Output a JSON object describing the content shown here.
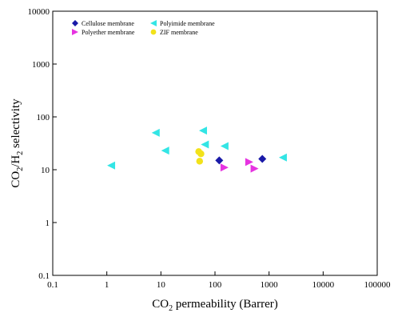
{
  "chart_data": {
    "type": "scatter",
    "title": "",
    "x_scale": "log",
    "y_scale": "log",
    "xlim": [
      0.1,
      100000
    ],
    "ylim": [
      0.1,
      10000
    ],
    "x_ticks": [
      0.1,
      1,
      10,
      100,
      1000,
      10000,
      100000
    ],
    "x_tick_labels": [
      "0.1",
      "1",
      "10",
      "100",
      "1000",
      "10000",
      "100000"
    ],
    "y_ticks": [
      0.1,
      1,
      10,
      100,
      1000,
      10000
    ],
    "y_tick_labels": [
      "0.1",
      "1",
      "10",
      "100",
      "1000",
      "10000"
    ],
    "xlabel": {
      "main": "CO",
      "sub": "2",
      "rest": " permeability (Barrer)"
    },
    "ylabel": {
      "a": "CO",
      "a_sub": "2",
      "b": "/H",
      "b_sub": "2",
      "c": " selectivity"
    },
    "grid": false,
    "legend_position": "top-left",
    "series": [
      {
        "name": "Cellulose membrane",
        "marker": "diamond",
        "color": "#1a1aa8",
        "points": [
          {
            "x": 120,
            "y": 15
          },
          {
            "x": 750,
            "y": 16
          }
        ]
      },
      {
        "name": "Polyimide membrane",
        "marker": "triangle-left",
        "color": "#33e5e5",
        "points": [
          {
            "x": 1.2,
            "y": 12
          },
          {
            "x": 8,
            "y": 50
          },
          {
            "x": 12,
            "y": 23
          },
          {
            "x": 60,
            "y": 55
          },
          {
            "x": 65,
            "y": 30
          },
          {
            "x": 150,
            "y": 28
          },
          {
            "x": 1800,
            "y": 17
          }
        ]
      },
      {
        "name": "Polyether membrane",
        "marker": "triangle-right",
        "color": "#e633e0",
        "points": [
          {
            "x": 150,
            "y": 11
          },
          {
            "x": 430,
            "y": 14
          },
          {
            "x": 540,
            "y": 10.5
          }
        ]
      },
      {
        "name": "ZIF membrane",
        "marker": "circle",
        "color": "#f2e21a",
        "points": [
          {
            "x": 50,
            "y": 22
          },
          {
            "x": 55,
            "y": 20
          },
          {
            "x": 52,
            "y": 14.5
          }
        ]
      }
    ]
  }
}
